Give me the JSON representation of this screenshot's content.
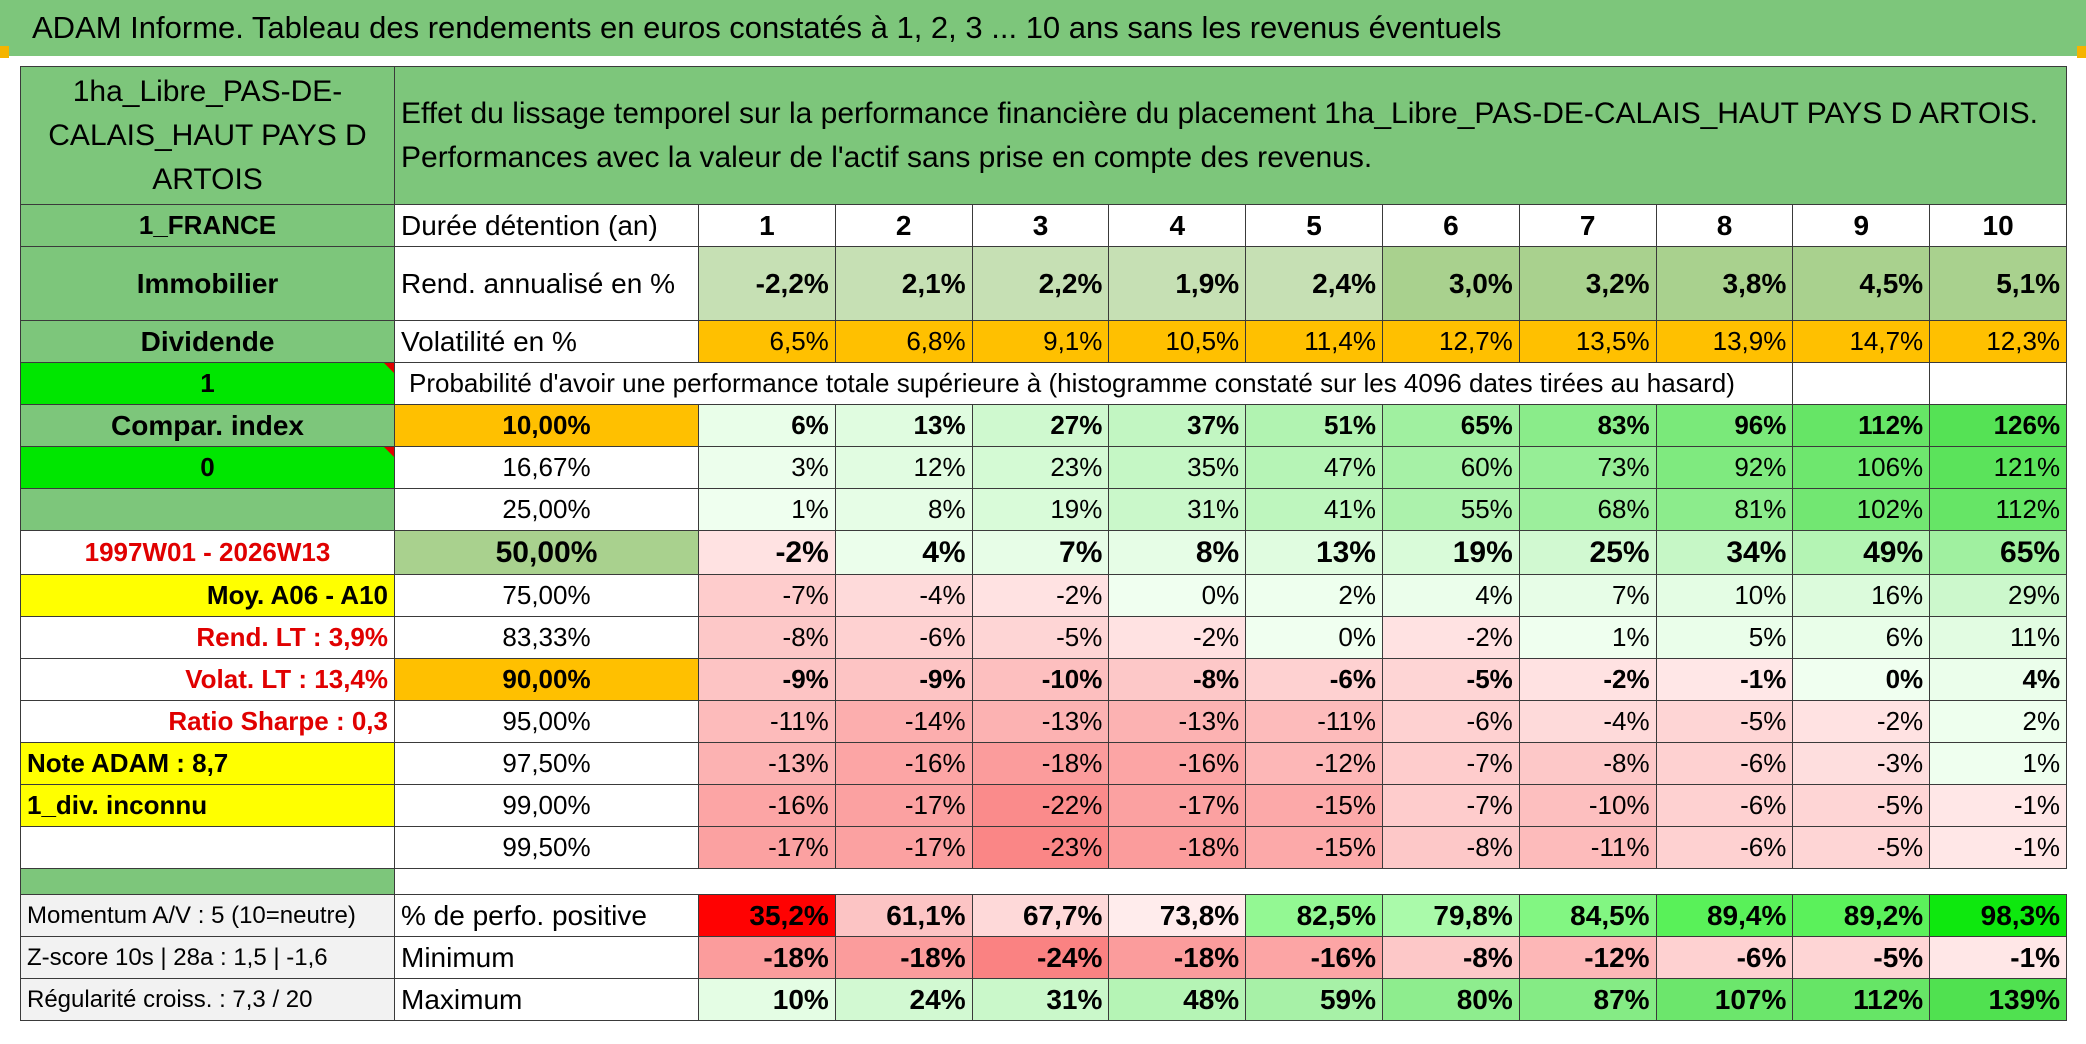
{
  "title": "ADAM Informe. Tableau des rendements en euros constatés à 1, 2, 3 ... 10 ans sans les revenus éventuels",
  "header": {
    "asset_name": "1ha_Libre_PAS-DE-CALAIS_HAUT PAYS D ARTOIS",
    "description_line1": "Effet du lissage temporel sur la performance financière du placement 1ha_Libre_PAS-DE-CALAIS_HAUT PAYS D ARTOIS.",
    "description_line2": "Performances avec la valeur de l'actif sans prise en compte des revenus."
  },
  "left_labels": {
    "country": "1_FRANCE",
    "category": "Immobilier",
    "income_type": "Dividende",
    "flag1": "1",
    "compar_index": "Compar. index",
    "flag0": "0",
    "period": "1997W01 - 2026W13",
    "moy": "Moy. A06 - A10",
    "rend_lt": "Rend. LT :   3,9%",
    "volat_lt": "Volat. LT :   13,4%",
    "sharpe": "Ratio Sharpe :    0,3",
    "note": "Note ADAM : 8,7",
    "div": "1_div. inconnu",
    "momentum": "Momentum A/V : 5 (10=neutre)",
    "zscore": "Z-score 10s | 28a : 1,5 | -1,6",
    "regularite": "Régularité croiss. : 7,3 / 20"
  },
  "row_labels": {
    "duree": "Durée détention (an)",
    "rend": "Rend. annualisé en %",
    "vol": "Volatilité en %",
    "prob": "Probabilité d'avoir une performance totale supérieure à (histogramme constaté sur les 4096 dates tirées au hasard)",
    "positive": "% de perfo. positive",
    "minimum": "Minimum",
    "maximum": "Maximum"
  },
  "years": [
    "1",
    "2",
    "3",
    "4",
    "5",
    "6",
    "7",
    "8",
    "9",
    "10"
  ],
  "rend": [
    "-2,2%",
    "2,1%",
    "2,2%",
    "1,9%",
    "2,4%",
    "3,0%",
    "3,2%",
    "3,8%",
    "4,5%",
    "5,1%"
  ],
  "vol": [
    "6,5%",
    "6,8%",
    "9,1%",
    "10,5%",
    "11,4%",
    "12,7%",
    "13,5%",
    "13,9%",
    "14,7%",
    "12,3%"
  ],
  "percentiles": [
    {
      "label": "10,00%",
      "values": [
        "6%",
        "13%",
        "27%",
        "37%",
        "51%",
        "65%",
        "83%",
        "96%",
        "112%",
        "126%"
      ]
    },
    {
      "label": "16,67%",
      "values": [
        "3%",
        "12%",
        "23%",
        "35%",
        "47%",
        "60%",
        "73%",
        "92%",
        "106%",
        "121%"
      ]
    },
    {
      "label": "25,00%",
      "values": [
        "1%",
        "8%",
        "19%",
        "31%",
        "41%",
        "55%",
        "68%",
        "81%",
        "102%",
        "112%"
      ]
    },
    {
      "label": "50,00%",
      "values": [
        "-2%",
        "4%",
        "7%",
        "8%",
        "13%",
        "19%",
        "25%",
        "34%",
        "49%",
        "65%"
      ]
    },
    {
      "label": "75,00%",
      "values": [
        "-7%",
        "-4%",
        "-2%",
        "0%",
        "2%",
        "4%",
        "7%",
        "10%",
        "16%",
        "29%"
      ]
    },
    {
      "label": "83,33%",
      "values": [
        "-8%",
        "-6%",
        "-5%",
        "-2%",
        "0%",
        "-2%",
        "1%",
        "5%",
        "6%",
        "11%"
      ]
    },
    {
      "label": "90,00%",
      "values": [
        "-9%",
        "-9%",
        "-10%",
        "-8%",
        "-6%",
        "-5%",
        "-2%",
        "-1%",
        "0%",
        "4%"
      ]
    },
    {
      "label": "95,00%",
      "values": [
        "-11%",
        "-14%",
        "-13%",
        "-13%",
        "-11%",
        "-6%",
        "-4%",
        "-5%",
        "-2%",
        "2%"
      ]
    },
    {
      "label": "97,50%",
      "values": [
        "-13%",
        "-16%",
        "-18%",
        "-16%",
        "-12%",
        "-7%",
        "-8%",
        "-6%",
        "-3%",
        "1%"
      ]
    },
    {
      "label": "99,00%",
      "values": [
        "-16%",
        "-17%",
        "-22%",
        "-17%",
        "-15%",
        "-7%",
        "-10%",
        "-6%",
        "-5%",
        "-1%"
      ]
    },
    {
      "label": "99,50%",
      "values": [
        "-17%",
        "-17%",
        "-23%",
        "-18%",
        "-15%",
        "-8%",
        "-11%",
        "-6%",
        "-5%",
        "-1%"
      ]
    }
  ],
  "positive": [
    "35,2%",
    "61,1%",
    "67,7%",
    "73,8%",
    "82,5%",
    "79,8%",
    "84,5%",
    "89,4%",
    "89,2%",
    "98,3%"
  ],
  "minimum": [
    "-18%",
    "-18%",
    "-24%",
    "-18%",
    "-16%",
    "-8%",
    "-12%",
    "-6%",
    "-5%",
    "-1%"
  ],
  "maximum": [
    "10%",
    "24%",
    "31%",
    "48%",
    "59%",
    "80%",
    "87%",
    "107%",
    "112%",
    "139%"
  ],
  "colors": {
    "header_green": "#7dc67b",
    "light_green": "#a9d18e",
    "bright_green": "#00e600",
    "yellow": "#ffff00",
    "orange": "#ffc000",
    "red_text": "#e00000"
  }
}
